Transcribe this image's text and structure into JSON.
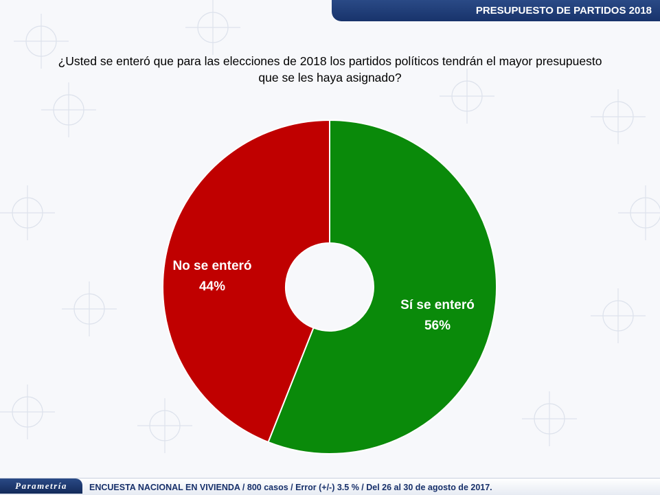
{
  "header": {
    "title": "PRESUPUESTO DE PARTIDOS 2018"
  },
  "question": {
    "line1": "¿Usted se enteró que para las elecciones de 2018 los partidos políticos tendrán el mayor presupuesto",
    "line2": "que se les haya asignado?"
  },
  "colors": {
    "header": "#1f3d7a",
    "green": "#0a8a0a",
    "red": "#c00000"
  },
  "chart_data": {
    "type": "pie",
    "donut": true,
    "categories": [
      "Sí se enteró",
      "No se enteró"
    ],
    "values": [
      56,
      44
    ],
    "value_labels": [
      "56%",
      "44%"
    ],
    "colors": [
      "#0a8a0a",
      "#c00000"
    ],
    "title": "",
    "legend": "none"
  },
  "footer": {
    "logo": "Parametría",
    "text": "ENCUESTA NACIONAL EN VIVIENDA / 800 casos / Error (+/-) 3.5 % / Del 26 al 30 de agosto de 2017."
  }
}
